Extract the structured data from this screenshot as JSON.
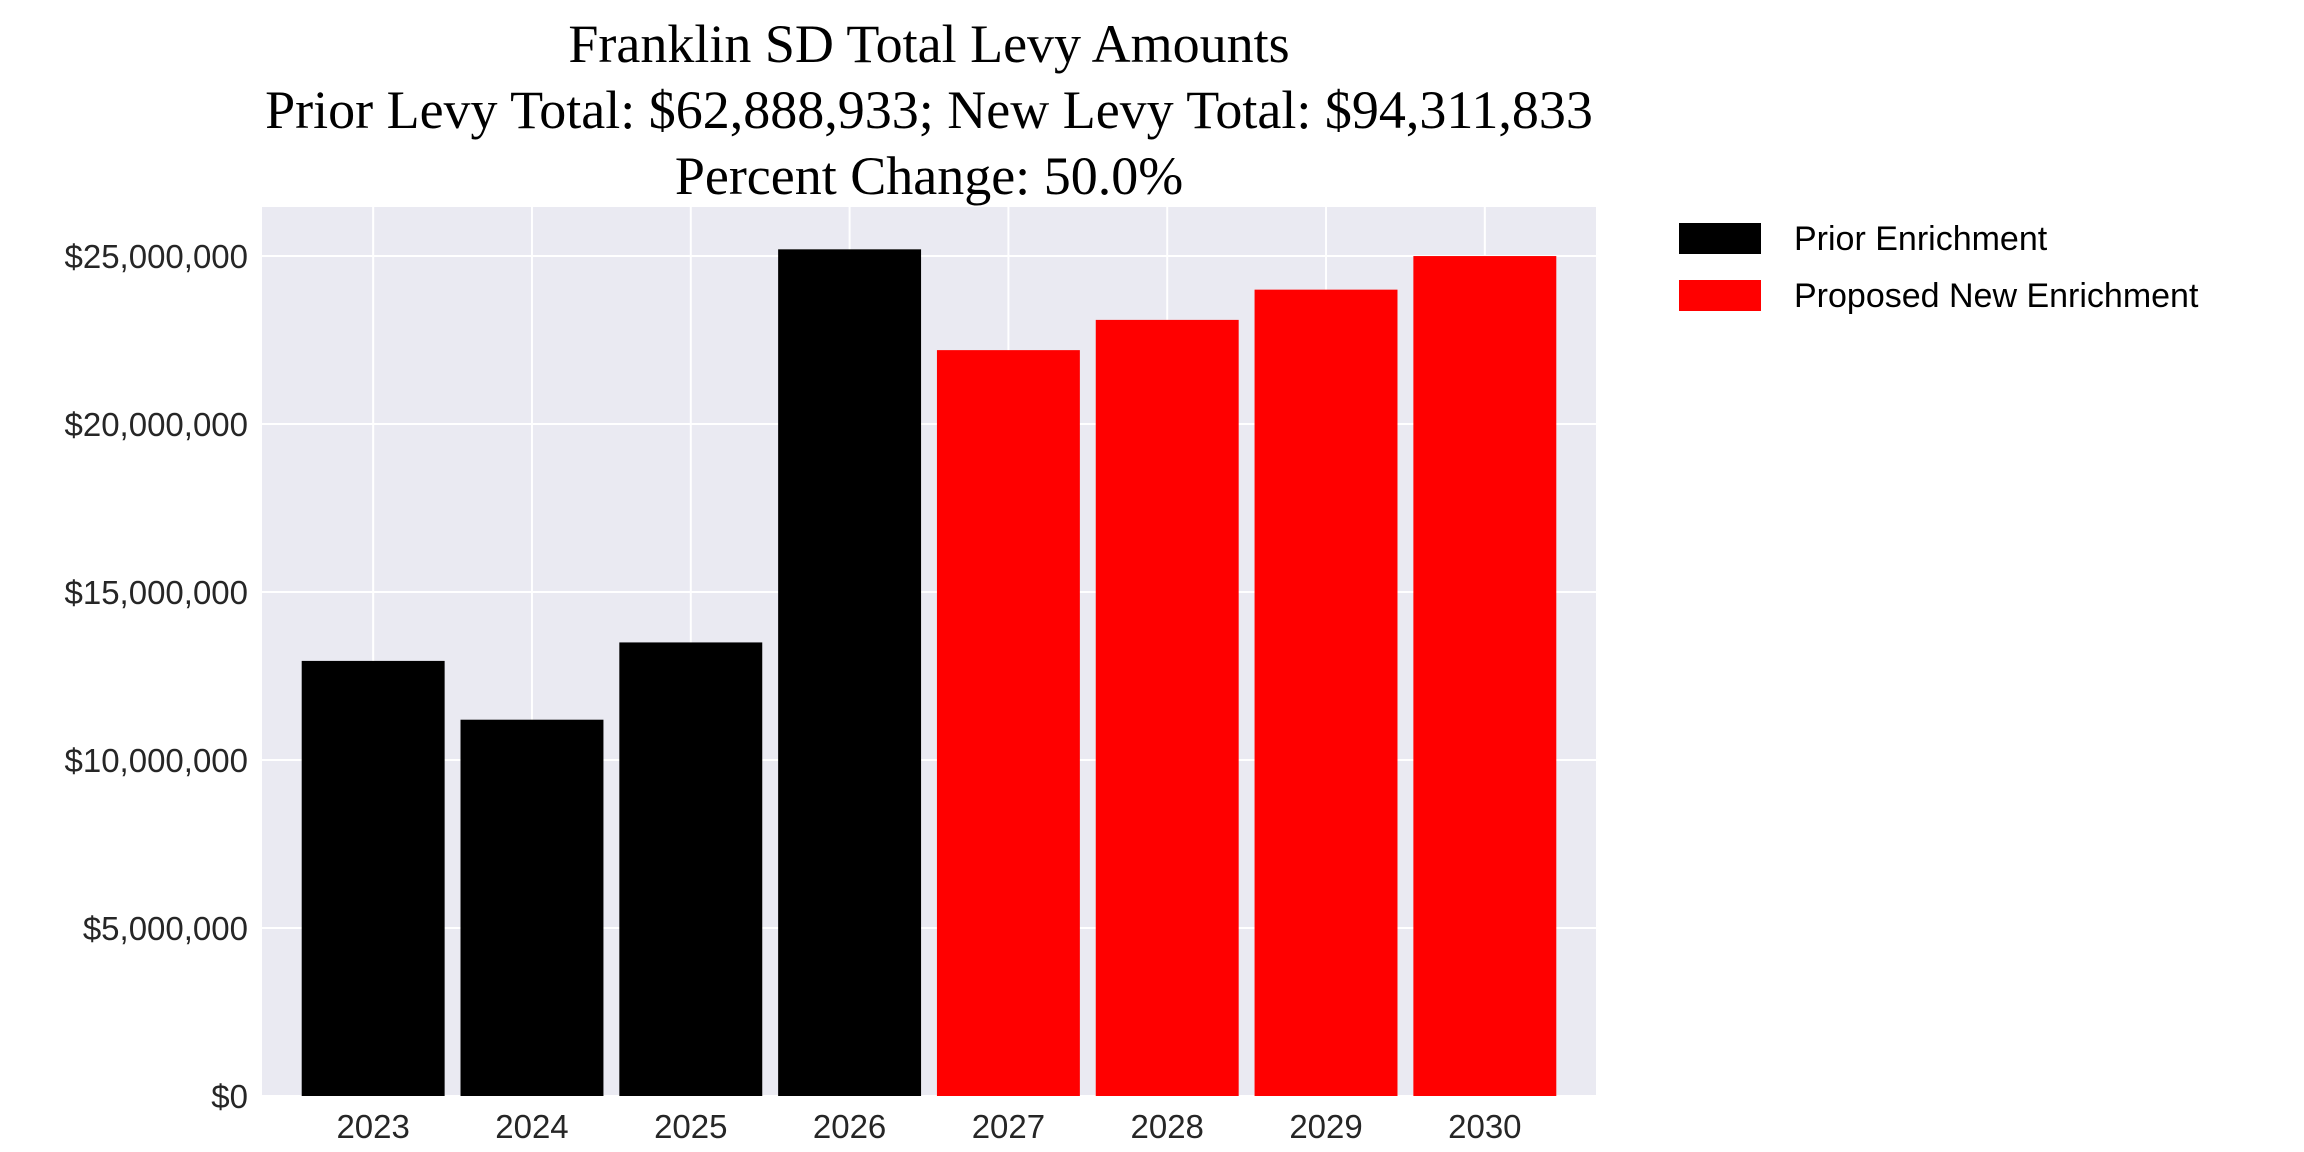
{
  "chart_data": {
    "type": "bar",
    "title": [
      "Franklin SD Total Levy Amounts",
      "Prior Levy Total:  $62,888,933; New Levy Total: $94,311,833",
      "Percent Change: 50.0%"
    ],
    "xlabel": "",
    "ylabel": "",
    "categories": [
      "2023",
      "2024",
      "2025",
      "2026",
      "2027",
      "2028",
      "2029",
      "2030"
    ],
    "series": [
      {
        "name": "Prior Enrichment",
        "color": "#000000",
        "values": [
          12950000,
          11200000,
          13500000,
          25200000,
          null,
          null,
          null,
          null
        ]
      },
      {
        "name": "Proposed New Enrichment",
        "color": "#ff0000",
        "values": [
          null,
          null,
          null,
          null,
          22200000,
          23100000,
          24000000,
          25000000
        ]
      }
    ],
    "ylim": [
      0,
      26460000
    ],
    "yticks": [
      0,
      5000000,
      10000000,
      15000000,
      20000000,
      25000000
    ],
    "ytick_labels": [
      "$0",
      "$5,000,000",
      "$10,000,000",
      "$15,000,000",
      "$20,000,000",
      "$25,000,000"
    ],
    "grid": true,
    "background": "#eaeaf2",
    "legend_position": "outside-top-right"
  }
}
